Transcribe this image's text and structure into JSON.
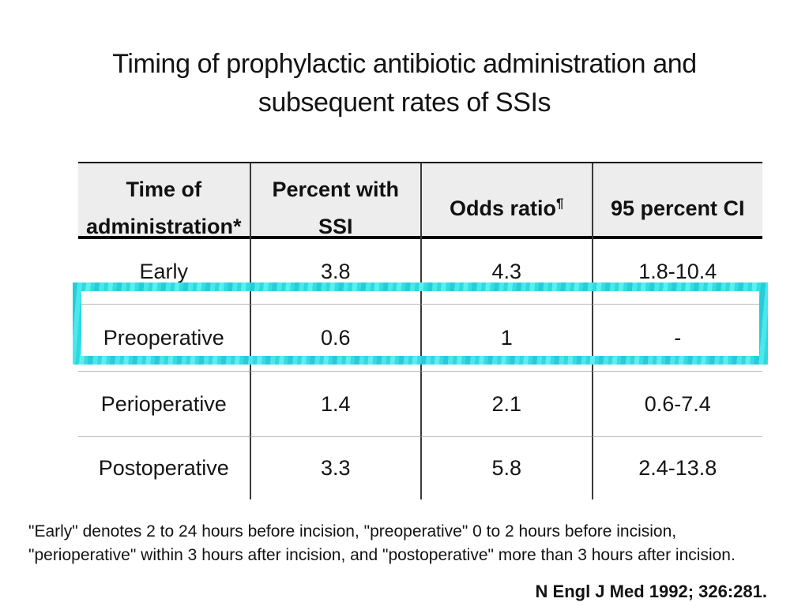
{
  "slide": {
    "title_line1": "Timing of prophylactic antibiotic administration and",
    "title_line2": "subsequent rates of SSIs"
  },
  "table": {
    "header": {
      "col1_line1": "Time of",
      "col1_line2": "administration*",
      "col2_line1": "Percent with",
      "col2_line2": "SSI",
      "col3": "Odds ratio",
      "col3_sup": "¶",
      "col4": "95 percent CI"
    },
    "rows": [
      {
        "label": "Early",
        "percent_ssi": "3.8",
        "odds_ratio": "4.3",
        "ci": "1.8-10.4"
      },
      {
        "label": "Preoperative",
        "percent_ssi": "0.6",
        "odds_ratio": "1",
        "ci": "-"
      },
      {
        "label": "Perioperative",
        "percent_ssi": "1.4",
        "odds_ratio": "2.1",
        "ci": "0.6-7.4"
      },
      {
        "label": "Postoperative",
        "percent_ssi": "3.3",
        "odds_ratio": "5.8",
        "ci": "2.4-13.8"
      }
    ],
    "highlighted_row": "Preoperative"
  },
  "footnote": {
    "line1": "\"Early\" denotes 2 to 24 hours before incision, \"preoperative\" 0 to 2 hours before incision,",
    "line2": "\"perioperative\" within 3 hours after incision, and \"postoperative\" more than 3 hours after incision."
  },
  "citation": {
    "text": "N Engl J Med 1992; 326:281."
  },
  "colors": {
    "highlight": "#38dfe4",
    "header_bg": "#ededed"
  }
}
